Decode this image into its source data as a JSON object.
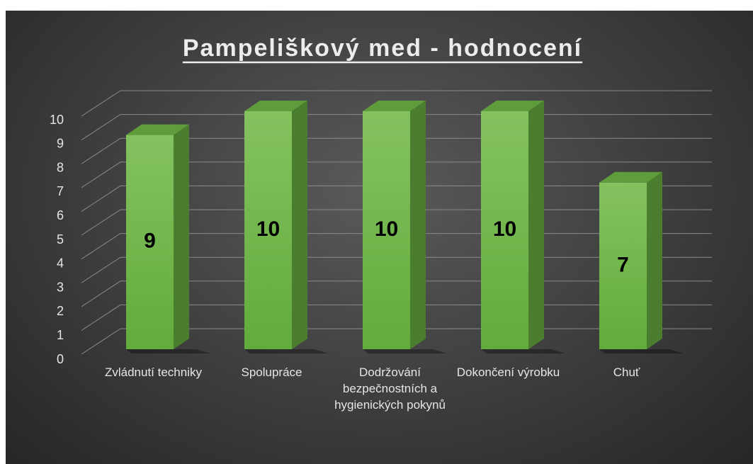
{
  "chart_data": {
    "type": "bar3d",
    "title": "Pampeliškový med - hodnocení",
    "categories": [
      "Zvládnutí techniky",
      "Spolupráce",
      "Dodržování bezpečnostních a hygienických pokynů",
      "Dokončení výrobku",
      "Chuť"
    ],
    "values": [
      9,
      10,
      10,
      10,
      7
    ],
    "color": "#6fb548",
    "ylim": [
      0,
      10
    ],
    "yticks": [
      0,
      1,
      2,
      3,
      4,
      5,
      6,
      7,
      8,
      9,
      10
    ],
    "grid": true
  }
}
